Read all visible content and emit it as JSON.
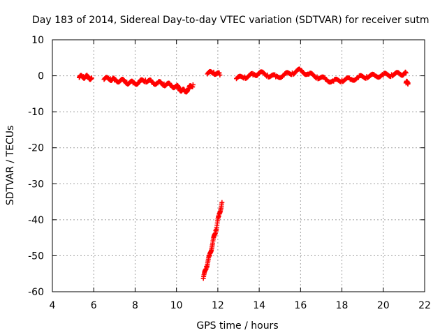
{
  "chart_data": {
    "type": "scatter",
    "title": "Day 183 of 2014, Sidereal Day-to-day VTEC variation (SDTVAR) for receiver sutm",
    "xlabel": "GPS time / hours",
    "ylabel": "SDTVAR / TECUs",
    "xlim": [
      4,
      22
    ],
    "ylim": [
      -60,
      10
    ],
    "xticks": [
      4,
      6,
      8,
      10,
      12,
      14,
      16,
      18,
      20,
      22
    ],
    "yticks": [
      10,
      0,
      -10,
      -20,
      -30,
      -40,
      -50,
      -60
    ],
    "grid": true,
    "marker": "+",
    "color": "#ff0000",
    "series": [
      {
        "name": "SDTVAR",
        "segments": [
          {
            "x": [
              5.3,
              5.5,
              5.7,
              5.9
            ],
            "y": [
              -0.5,
              -0.2,
              -0.4,
              -0.6
            ]
          },
          {
            "x": [
              6.5,
              6.8,
              7.0,
              7.3,
              7.6,
              7.9,
              8.2,
              8.5,
              8.8,
              9.1,
              9.4,
              9.7,
              10.0,
              10.2,
              10.4,
              10.6,
              10.8
            ],
            "y": [
              -1.0,
              -0.8,
              -1.2,
              -1.3,
              -1.8,
              -2.0,
              -1.8,
              -1.2,
              -1.8,
              -2.0,
              -2.3,
              -2.6,
              -3.0,
              -3.8,
              -4.4,
              -3.5,
              -2.5
            ]
          },
          {
            "x": [
              11.5,
              11.8,
              12.1
            ],
            "y": [
              0.5,
              1.0,
              0.2
            ]
          },
          {
            "x": [
              12.9,
              13.3,
              13.7,
              14.0,
              14.4,
              14.8,
              15.2,
              15.6,
              16.0,
              16.4,
              16.8,
              17.2,
              17.6,
              18.0,
              18.4,
              18.8,
              19.2,
              19.6,
              20.0,
              20.4,
              20.8,
              21.1
            ],
            "y": [
              -0.8,
              -0.3,
              0.2,
              0.8,
              0.2,
              -0.3,
              0.2,
              0.8,
              1.5,
              0.4,
              -0.3,
              -1.0,
              -1.5,
              -1.2,
              -1.0,
              -0.5,
              -0.2,
              0.0,
              0.2,
              0.3,
              0.5,
              0.8
            ]
          },
          {
            "x": [
              21.1,
              21.2
            ],
            "y": [
              -2.0,
              -2.0
            ]
          },
          {
            "x": [
              11.3,
              11.45,
              11.6,
              11.75,
              11.9,
              12.05,
              12.2
            ],
            "y": [
              -56.3,
              -53.0,
              -50.0,
              -46.5,
              -43.0,
              -39.0,
              -35.2
            ]
          }
        ]
      }
    ]
  }
}
